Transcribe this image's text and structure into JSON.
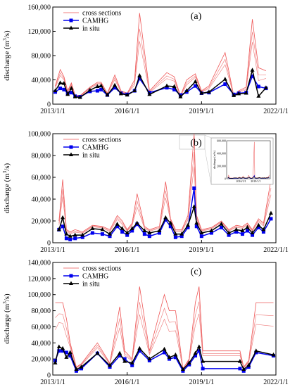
{
  "chart_data": [
    {
      "type": "line",
      "panel_label": "(a)",
      "ylabel": "discharge (m",
      "ylabel_sup": "3",
      "ylabel_end": "/s)",
      "ylim": [
        0,
        160000
      ],
      "xlim": [
        "2013/1/1",
        "2022/1/1"
      ],
      "yticks": [
        "0",
        "40,000",
        "80,000",
        "120,000",
        "160,000"
      ],
      "xticks": [
        "2013/1/1",
        "2016/1/1",
        "2019/1/1",
        "2022/1/1"
      ],
      "legend": [
        "cross sections",
        "CAMHG",
        "in situ"
      ],
      "series": [
        {
          "name": "in situ",
          "x": [
            2013.1,
            2013.3,
            2013.45,
            2013.6,
            2013.75,
            2013.9,
            2014.1,
            2014.5,
            2014.8,
            2014.95,
            2015.2,
            2015.5,
            2015.75,
            2016.0,
            2016.3,
            2016.5,
            2016.9,
            2017.6,
            2017.9,
            2018.15,
            2018.4,
            2018.75,
            2019.0,
            2019.3,
            2019.95,
            2020.3,
            2020.5,
            2020.8,
            2021.05,
            2021.3,
            2021.6
          ],
          "y": [
            22000,
            35000,
            34000,
            16000,
            26000,
            12000,
            11000,
            23000,
            29000,
            30000,
            15000,
            31000,
            17000,
            15000,
            22000,
            47000,
            16000,
            30000,
            29000,
            12000,
            22000,
            37000,
            18000,
            20000,
            41000,
            14000,
            17000,
            18000,
            56000,
            13000,
            27000
          ]
        },
        {
          "name": "CAMHG",
          "x": [
            2013.1,
            2013.3,
            2013.45,
            2013.6,
            2013.75,
            2013.9,
            2014.1,
            2014.5,
            2014.8,
            2014.95,
            2015.2,
            2015.5,
            2015.75,
            2016.0,
            2016.3,
            2016.5,
            2016.9,
            2017.6,
            2017.9,
            2018.15,
            2018.4,
            2018.75,
            2019.0,
            2019.3,
            2019.95,
            2020.3,
            2020.5,
            2020.8,
            2021.05,
            2021.3,
            2021.6
          ],
          "y": [
            20000,
            26000,
            24000,
            18000,
            19000,
            13000,
            12000,
            21000,
            22000,
            24000,
            15000,
            27000,
            18000,
            16000,
            22000,
            42000,
            19000,
            27000,
            24000,
            15000,
            20000,
            30000,
            18000,
            19000,
            33000,
            16000,
            18000,
            19000,
            46000,
            29000,
            26000
          ]
        },
        {
          "name": "cross sections",
          "x": [
            2013.1,
            2013.3,
            2013.45,
            2013.6,
            2013.75,
            2013.9,
            2014.1,
            2014.5,
            2014.8,
            2014.95,
            2015.2,
            2015.5,
            2015.75,
            2016.0,
            2016.3,
            2016.5,
            2016.9,
            2017.6,
            2017.9,
            2018.15,
            2018.4,
            2018.75,
            2019.0,
            2019.3,
            2019.95,
            2020.3,
            2020.5,
            2020.8,
            2021.05,
            2021.3,
            2021.6
          ],
          "y": [
            30000,
            57000,
            45000,
            22000,
            35000,
            15000,
            14000,
            28000,
            36000,
            36000,
            18000,
            48000,
            22000,
            18000,
            40000,
            150000,
            22000,
            52000,
            45000,
            14000,
            40000,
            50000,
            22000,
            30000,
            85000,
            14000,
            22000,
            28000,
            140000,
            60000,
            55000
          ]
        }
      ]
    },
    {
      "type": "line",
      "panel_label": "(b)",
      "ylabel": "discharge (m",
      "ylabel_sup": "3",
      "ylabel_end": "/s)",
      "ylim": [
        0,
        100000
      ],
      "xlim": [
        "2013/1/1",
        "2022/1/1"
      ],
      "yticks": [
        "0",
        "20,000",
        "40,000",
        "60,000",
        "80,000",
        "100,000"
      ],
      "xticks": [
        "2013/1/1",
        "2016/1/1",
        "2019/1/1",
        "2022/1/1"
      ],
      "legend": [
        "cross sections",
        "CAMHG",
        "in situ"
      ],
      "inset": {
        "yticks": [
          "0",
          "200,000",
          "400,000",
          "600,000"
        ],
        "xticks": [
          "2016/1/1",
          "2019/1/1"
        ],
        "ylabel": "discharge (m³/s)"
      },
      "series": [
        {
          "name": "in situ",
          "x": [
            2013.25,
            2013.4,
            2013.55,
            2013.7,
            2013.9,
            2014.2,
            2014.6,
            2015.0,
            2015.3,
            2015.6,
            2015.8,
            2016.0,
            2016.2,
            2016.4,
            2016.7,
            2016.9,
            2017.3,
            2017.55,
            2017.75,
            2017.95,
            2018.2,
            2018.45,
            2018.7,
            2018.8,
            2019.0,
            2019.4,
            2019.8,
            2020.1,
            2020.4,
            2020.65,
            2020.85,
            2021.05,
            2021.3,
            2021.5,
            2021.8
          ],
          "y": [
            12000,
            23000,
            8000,
            6000,
            7000,
            7000,
            13000,
            12000,
            8000,
            17000,
            13000,
            9000,
            13000,
            18000,
            11000,
            9000,
            11000,
            23000,
            18000,
            8000,
            8000,
            16000,
            33000,
            18000,
            9000,
            11000,
            17000,
            9000,
            12000,
            11000,
            14000,
            9000,
            16000,
            12000,
            27000
          ]
        },
        {
          "name": "CAMHG",
          "x": [
            2013.25,
            2013.4,
            2013.55,
            2013.7,
            2013.9,
            2014.2,
            2014.6,
            2015.0,
            2015.3,
            2015.6,
            2015.8,
            2016.0,
            2016.2,
            2016.4,
            2016.7,
            2016.9,
            2017.3,
            2017.55,
            2017.75,
            2017.95,
            2018.2,
            2018.45,
            2018.7,
            2018.8,
            2019.0,
            2019.4,
            2019.8,
            2020.1,
            2020.4,
            2020.65,
            2020.85,
            2021.05,
            2021.3,
            2021.5,
            2021.8
          ],
          "y": [
            12000,
            15000,
            4000,
            3000,
            4000,
            5000,
            9000,
            8000,
            6000,
            15000,
            10000,
            7000,
            11000,
            17000,
            8000,
            6000,
            9000,
            21000,
            15000,
            5000,
            6000,
            14000,
            50000,
            15000,
            6000,
            9000,
            14000,
            7000,
            10000,
            8000,
            11000,
            7000,
            14000,
            10000,
            22000
          ]
        },
        {
          "name": "cross sections",
          "x": [
            2013.25,
            2013.4,
            2013.55,
            2013.7,
            2013.9,
            2014.2,
            2014.6,
            2015.0,
            2015.3,
            2015.6,
            2015.8,
            2016.0,
            2016.2,
            2016.4,
            2016.7,
            2016.9,
            2017.3,
            2017.55,
            2017.75,
            2017.95,
            2018.2,
            2018.45,
            2018.7,
            2018.8,
            2019.0,
            2019.4,
            2019.8,
            2020.1,
            2020.4,
            2020.65,
            2020.85,
            2021.05,
            2021.3,
            2021.5,
            2021.8
          ],
          "y": [
            20000,
            58000,
            12000,
            10000,
            12000,
            10000,
            16000,
            15000,
            12000,
            25000,
            20000,
            12000,
            18000,
            45000,
            15000,
            12000,
            15000,
            56000,
            22000,
            12000,
            12000,
            25000,
            100000,
            25000,
            12000,
            14000,
            20000,
            12000,
            16000,
            15000,
            18000,
            12000,
            22000,
            18000,
            58000
          ]
        }
      ]
    },
    {
      "type": "line",
      "panel_label": "(c)",
      "ylabel": "discharge (m",
      "ylabel_sup": "3",
      "ylabel_end": "/s)",
      "ylim": [
        0,
        140000
      ],
      "xlim": [
        "2013/1/1",
        "2022/1/1"
      ],
      "yticks": [
        "0",
        "20,000",
        "40,000",
        "60,000",
        "80,000",
        "100,000",
        "120,000",
        "140,000"
      ],
      "xticks": [
        "2013/1/1",
        "2016/1/1",
        "2019/1/1",
        "2022/1/1"
      ],
      "legend": [
        "cross sections",
        "CAMHG",
        "in situ"
      ],
      "series": [
        {
          "name": "in situ",
          "x": [
            2013.1,
            2013.25,
            2013.4,
            2013.55,
            2013.7,
            2013.95,
            2014.15,
            2014.8,
            2015.3,
            2015.7,
            2015.9,
            2016.2,
            2016.5,
            2016.9,
            2017.5,
            2017.7,
            2017.95,
            2018.25,
            2018.5,
            2018.75,
            2018.9,
            2019.05,
            2020.55,
            2020.7,
            2020.9,
            2021.2,
            2021.9
          ],
          "y": [
            15000,
            35000,
            33000,
            22000,
            28000,
            7000,
            10000,
            27000,
            12000,
            27000,
            17000,
            15000,
            33000,
            20000,
            32000,
            22000,
            25000,
            7000,
            15000,
            27000,
            35000,
            17000,
            17000,
            7000,
            12000,
            30000,
            25000
          ]
        },
        {
          "name": "CAMHG",
          "x": [
            2013.1,
            2013.25,
            2013.4,
            2013.55,
            2013.7,
            2013.95,
            2014.15,
            2014.8,
            2015.3,
            2015.7,
            2015.9,
            2016.2,
            2016.5,
            2016.9,
            2017.5,
            2017.7,
            2017.95,
            2018.25,
            2018.5,
            2018.75,
            2018.9,
            2019.05,
            2020.55,
            2020.7,
            2020.9,
            2021.2,
            2021.9
          ],
          "y": [
            18000,
            30000,
            30000,
            28000,
            24000,
            5000,
            8000,
            27000,
            10000,
            24000,
            20000,
            12000,
            30000,
            18000,
            28000,
            20000,
            22000,
            5000,
            13000,
            24000,
            30000,
            8000,
            8000,
            5000,
            10000,
            28000,
            24000
          ]
        },
        {
          "name": "cross sections",
          "x": [
            2013.1,
            2013.25,
            2013.4,
            2013.55,
            2013.7,
            2013.95,
            2014.15,
            2014.8,
            2015.3,
            2015.7,
            2015.9,
            2016.2,
            2016.5,
            2016.9,
            2017.5,
            2017.7,
            2017.95,
            2018.25,
            2018.5,
            2018.75,
            2018.9,
            2019.05,
            2020.55,
            2020.7,
            2020.9,
            2021.2,
            2021.9
          ],
          "y": [
            90000,
            90000,
            90000,
            70000,
            40000,
            10000,
            14000,
            40000,
            15000,
            85000,
            30000,
            20000,
            110000,
            30000,
            100000,
            80000,
            80000,
            8000,
            20000,
            90000,
            110000,
            30000,
            30000,
            10000,
            18000,
            90000,
            90000
          ]
        }
      ]
    }
  ]
}
